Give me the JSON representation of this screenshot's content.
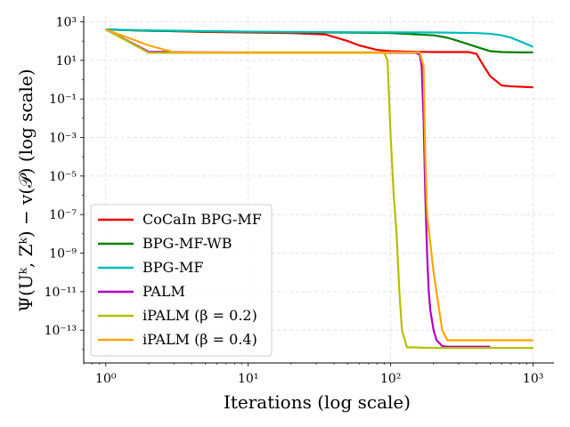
{
  "chart_data": {
    "type": "line",
    "xlabel": "Iterations (log scale)",
    "ylabel": "Ψ(Uᵏ, Zᵏ) − v(𝒫) (log scale)",
    "xscale": "log",
    "yscale": "log",
    "xlim": [
      0.7,
      1400
    ],
    "ylim": [
      2e-15,
      2000
    ],
    "xticks": [
      {
        "value": 1,
        "label": "10⁰"
      },
      {
        "value": 10,
        "label": "10¹"
      },
      {
        "value": 100,
        "label": "10²"
      },
      {
        "value": 1000,
        "label": "10³"
      }
    ],
    "yticks": [
      {
        "value": 1000.0,
        "label": "10³"
      },
      {
        "value": 10.0,
        "label": "10¹"
      },
      {
        "value": 0.1,
        "label": "10⁻¹"
      },
      {
        "value": 0.001,
        "label": "10⁻³"
      },
      {
        "value": 1e-05,
        "label": "10⁻⁵"
      },
      {
        "value": 1e-07,
        "label": "10⁻⁷"
      },
      {
        "value": 1e-09,
        "label": "10⁻⁹"
      },
      {
        "value": 1e-11,
        "label": "10⁻¹¹"
      },
      {
        "value": 1e-13,
        "label": "10⁻¹³"
      }
    ],
    "grid": true,
    "legend_position": "lower-left",
    "series": [
      {
        "name": "CoCaIn BPG-MF",
        "color": "#ee0000",
        "x": [
          1,
          2,
          5,
          10,
          20,
          35,
          50,
          60,
          80,
          100,
          150,
          200,
          300,
          350,
          400,
          450,
          500,
          600,
          700,
          1000
        ],
        "y": [
          400,
          350,
          300,
          280,
          260,
          220,
          100,
          60,
          35,
          30,
          28,
          27,
          27,
          27,
          22,
          5,
          1.5,
          0.5,
          0.45,
          0.4
        ]
      },
      {
        "name": "BPG-MF-WB",
        "color": "#007f00",
        "x": [
          1,
          2,
          5,
          10,
          20,
          50,
          100,
          200,
          250,
          300,
          400,
          500,
          600,
          800,
          1000
        ],
        "y": [
          400,
          340,
          320,
          300,
          290,
          275,
          260,
          200,
          150,
          100,
          50,
          30,
          27,
          26,
          26
        ]
      },
      {
        "name": "BPG-MF",
        "color": "#00bbbb",
        "x": [
          1,
          2,
          5,
          10,
          20,
          50,
          100,
          200,
          300,
          400,
          500,
          600,
          700,
          800,
          900,
          1000
        ],
        "y": [
          400,
          360,
          330,
          310,
          300,
          290,
          285,
          280,
          270,
          260,
          240,
          200,
          150,
          100,
          70,
          50
        ]
      },
      {
        "name": "PALM",
        "color": "#b000c0",
        "x": [
          1,
          2,
          5,
          10,
          50,
          100,
          150,
          160,
          165,
          170,
          175,
          180,
          185,
          190,
          200,
          210,
          230,
          250,
          300,
          400,
          500
        ],
        "y": [
          400,
          28,
          26,
          25.5,
          25,
          25,
          25,
          20,
          5,
          0.01,
          1e-06,
          1e-09,
          1e-11,
          1e-12,
          1e-13,
          3e-14,
          1.5e-14,
          1.4e-14,
          1.4e-14,
          1.4e-14,
          1.4e-14
        ]
      },
      {
        "name": "iPALM (β = 0.2)",
        "color": "#b5c000",
        "x": [
          1,
          2,
          5,
          10,
          50,
          90,
          95,
          100,
          105,
          110,
          115,
          120,
          130,
          200,
          300,
          500,
          1000
        ],
        "y": [
          400,
          25,
          24.5,
          24.5,
          24.5,
          24.5,
          10,
          0.001,
          1e-06,
          1e-08,
          1e-11,
          1e-13,
          1.3e-14,
          1.2e-14,
          1.2e-14,
          1.2e-14,
          1.2e-14
        ]
      },
      {
        "name": "iPALM (β = 0.4)",
        "color": "#ffa500",
        "x": [
          1,
          2,
          3,
          10,
          50,
          100,
          160,
          170,
          175,
          180,
          200,
          230,
          250,
          300,
          400,
          500,
          1000
        ],
        "y": [
          400,
          60,
          26,
          26,
          26,
          26,
          26,
          5,
          0.0001,
          1e-07,
          1e-10,
          1e-13,
          3e-14,
          3e-14,
          3e-14,
          3e-14,
          3e-14
        ]
      }
    ]
  }
}
